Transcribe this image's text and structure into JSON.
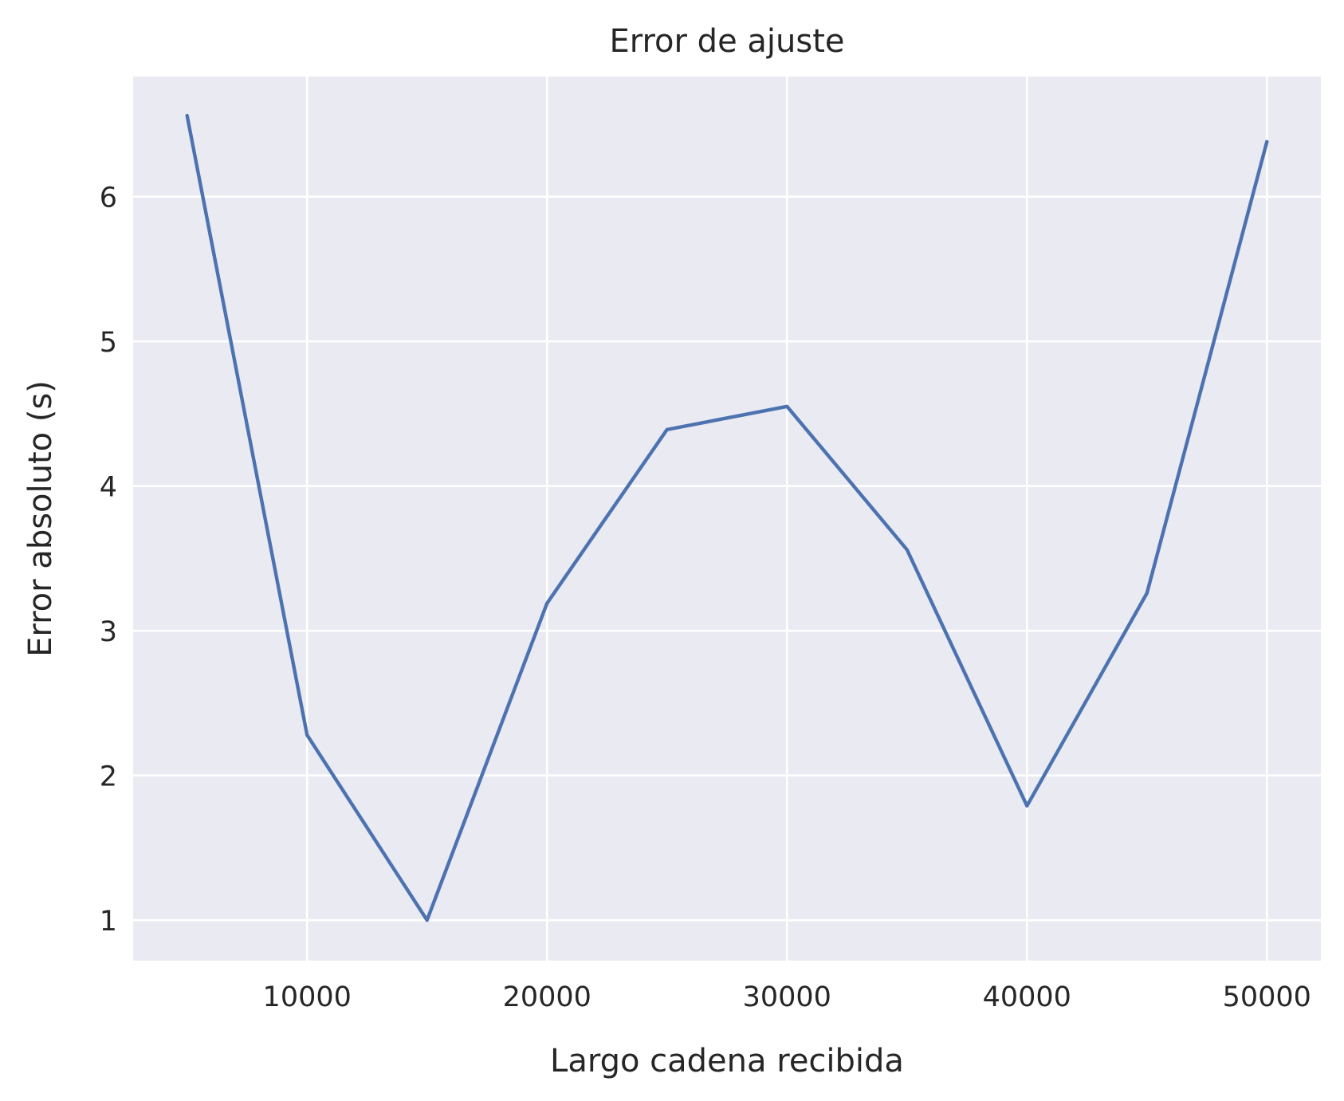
{
  "chart_data": {
    "type": "line",
    "title": "Error de ajuste",
    "xlabel": "Largo cadena recibida",
    "ylabel": "Error absoluto (s)",
    "xlim": [
      2750,
      52250
    ],
    "ylim": [
      0.72,
      6.83
    ],
    "xticks": [
      10000,
      20000,
      30000,
      40000,
      50000
    ],
    "yticks": [
      1,
      2,
      3,
      4,
      5,
      6
    ],
    "grid": true,
    "colors": {
      "background": "#eaeaf2",
      "grid": "#ffffff",
      "series": "#4c72b0",
      "text": "#262626"
    },
    "series": [
      {
        "x": [
          5000,
          10000,
          15000,
          20000,
          25000,
          30000,
          35000,
          40000,
          45000,
          50000
        ],
        "y": [
          6.56,
          2.28,
          1.0,
          3.19,
          4.39,
          4.55,
          3.56,
          1.79,
          3.26,
          6.38
        ]
      }
    ]
  }
}
